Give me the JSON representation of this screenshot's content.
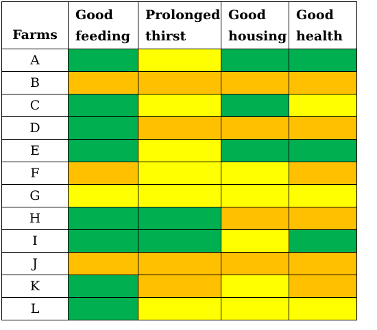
{
  "table": {
    "columns": [
      "Farms",
      "Good feeding",
      "Prolonged thirst",
      "Good housing",
      "Good health"
    ],
    "rows": [
      {
        "farm": "A",
        "ratings": [
          "green",
          "yellow",
          "green",
          "green"
        ]
      },
      {
        "farm": "B",
        "ratings": [
          "orange",
          "orange",
          "orange",
          "orange"
        ]
      },
      {
        "farm": "C",
        "ratings": [
          "green",
          "yellow",
          "green",
          "yellow"
        ]
      },
      {
        "farm": "D",
        "ratings": [
          "green",
          "orange",
          "orange",
          "orange"
        ]
      },
      {
        "farm": "E",
        "ratings": [
          "green",
          "yellow",
          "green",
          "green"
        ]
      },
      {
        "farm": "F",
        "ratings": [
          "orange",
          "yellow",
          "yellow",
          "orange"
        ]
      },
      {
        "farm": "G",
        "ratings": [
          "yellow",
          "yellow",
          "yellow",
          "yellow"
        ]
      },
      {
        "farm": "H",
        "ratings": [
          "green",
          "green",
          "orange",
          "orange"
        ]
      },
      {
        "farm": "I",
        "ratings": [
          "green",
          "green",
          "yellow",
          "green"
        ]
      },
      {
        "farm": "J",
        "ratings": [
          "orange",
          "orange",
          "orange",
          "orange"
        ]
      },
      {
        "farm": "K",
        "ratings": [
          "green",
          "orange",
          "yellow",
          "orange"
        ]
      },
      {
        "farm": "L",
        "ratings": [
          "green",
          "yellow",
          "yellow",
          "yellow"
        ]
      }
    ]
  },
  "colors": {
    "green": "#00b050",
    "yellow": "#ffff00",
    "orange": "#ffc000"
  }
}
